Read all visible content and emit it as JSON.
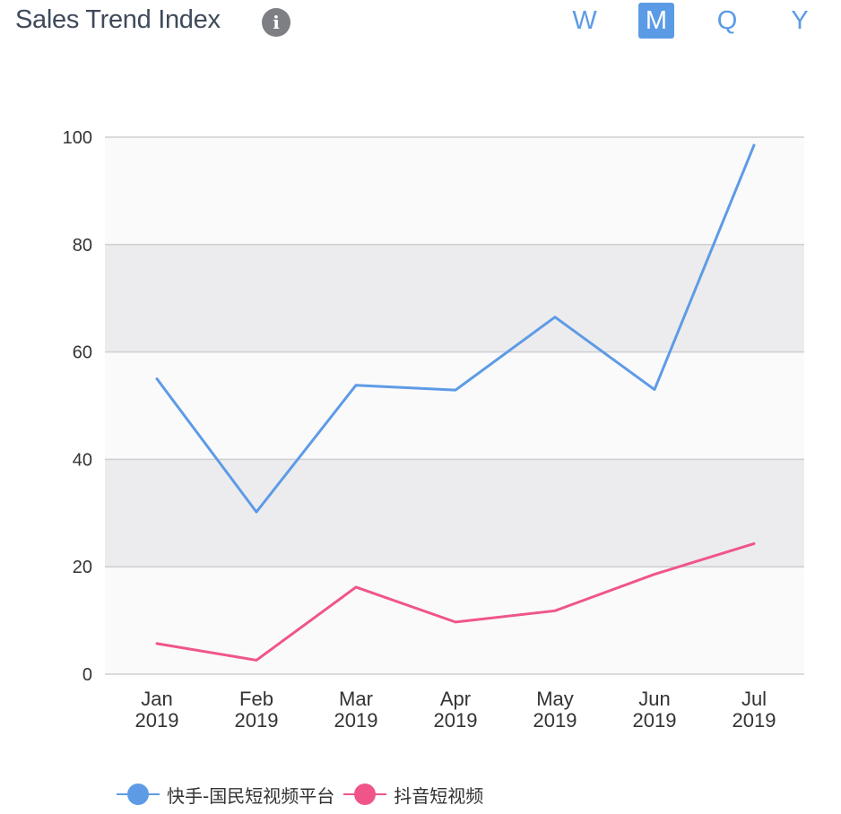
{
  "header": {
    "title": "Sales Trend Index",
    "info_icon": "info-icon",
    "periods": [
      {
        "label": "W",
        "active": false
      },
      {
        "label": "M",
        "active": true
      },
      {
        "label": "Q",
        "active": false
      },
      {
        "label": "Y",
        "active": false
      }
    ]
  },
  "colors": {
    "accent": "#5b9be6",
    "series_1": "#5e9be6",
    "series_2": "#f0558a",
    "band": "#ececee",
    "band_alt": "#fafafb",
    "grid": "#cfcfd2",
    "tick_text": "#333333"
  },
  "chart_data": {
    "type": "line",
    "categories": [
      [
        "Jan",
        "2019"
      ],
      [
        "Feb",
        "2019"
      ],
      [
        "Mar",
        "2019"
      ],
      [
        "Apr",
        "2019"
      ],
      [
        "May",
        "2019"
      ],
      [
        "Jun",
        "2019"
      ],
      [
        "Jul",
        "2019"
      ]
    ],
    "series": [
      {
        "name": "快手-国民短视频平台",
        "values": [
          55,
          30.2,
          53.8,
          52.9,
          66.5,
          53,
          98.5
        ]
      },
      {
        "name": "抖音短视频",
        "values": [
          5.7,
          2.6,
          16.2,
          9.7,
          11.8,
          18.6,
          24.3
        ]
      }
    ],
    "yticks": [
      0,
      20,
      40,
      60,
      80,
      100
    ],
    "ylim": [
      0,
      100
    ],
    "title": "",
    "xlabel": "",
    "ylabel": "",
    "grid": true,
    "legend_position": "bottom"
  }
}
